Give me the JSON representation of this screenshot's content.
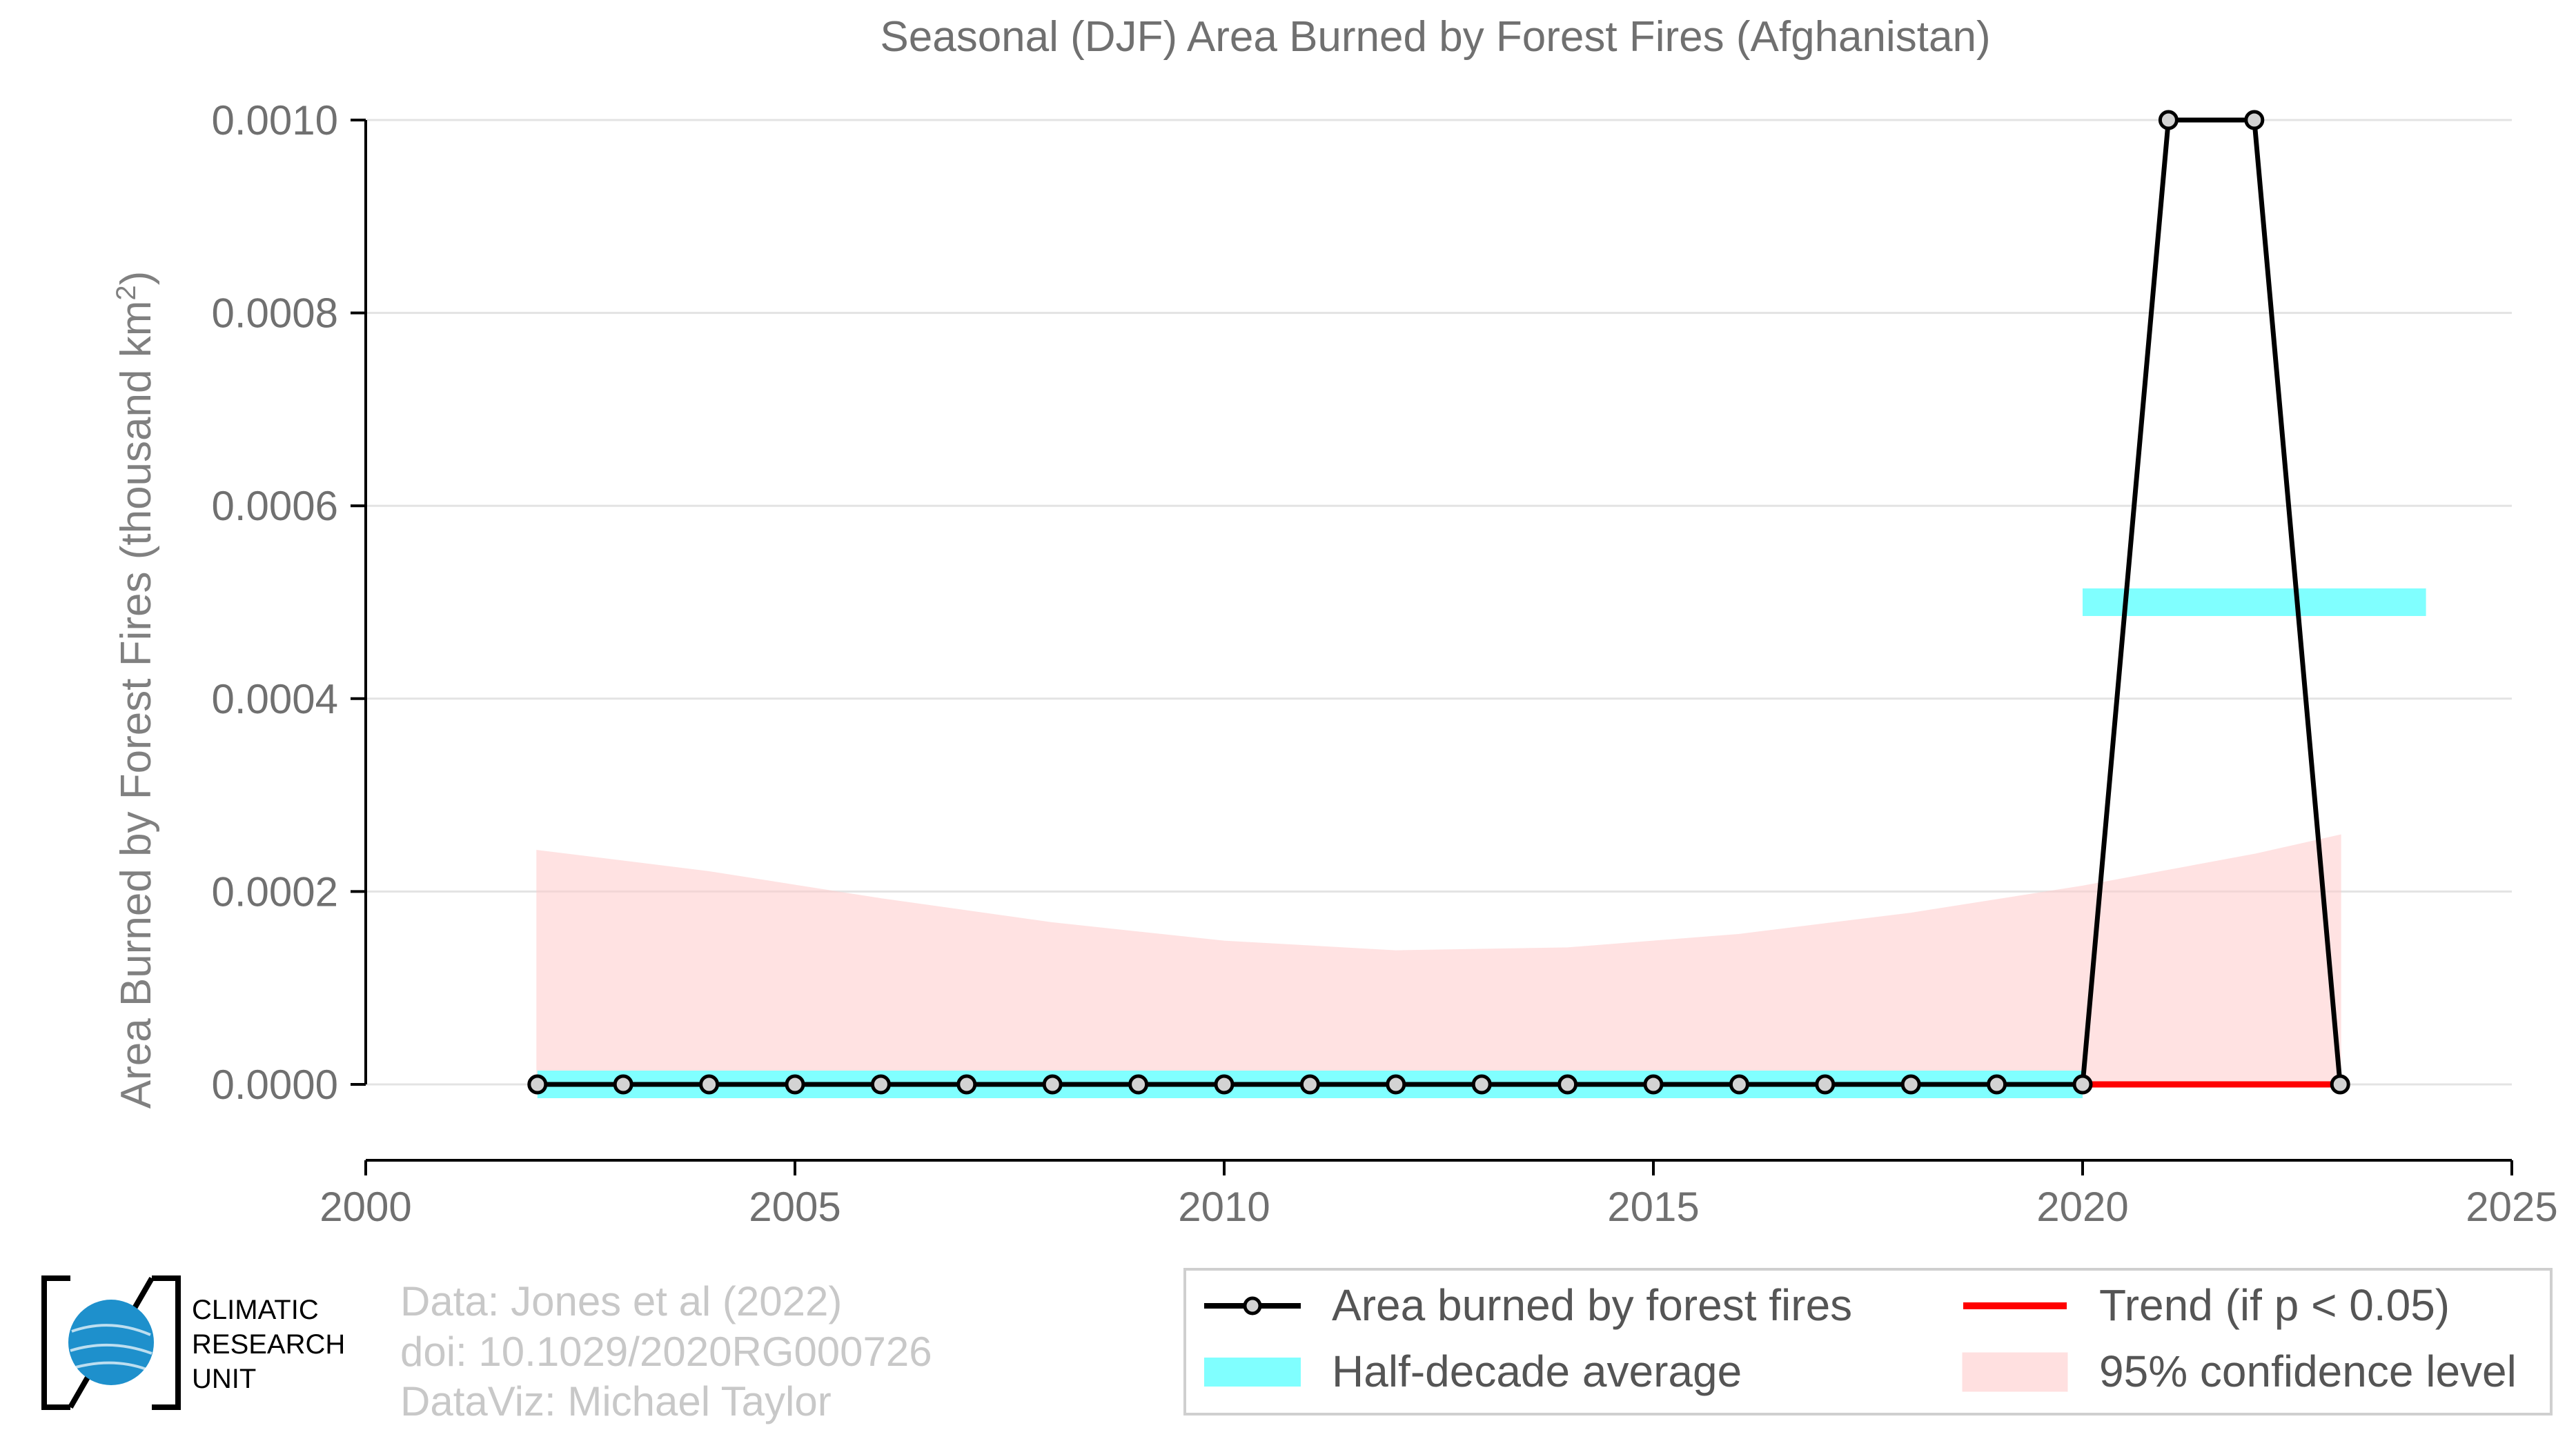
{
  "chart_data": {
    "type": "line",
    "title": "Seasonal (DJF) Area Burned by Forest Fires (Afghanistan)",
    "xlabel": "",
    "ylabel": "Area Burned by Forest Fires (thousand km",
    "ylabel_sup": "2",
    "ylabel_end": ")",
    "xlim": [
      2000,
      2025
    ],
    "ylim": [
      0,
      0.001
    ],
    "x_ticks": [
      "2000",
      "2005",
      "2010",
      "2015",
      "2020",
      "2025"
    ],
    "y_ticks": [
      "0.0000",
      "0.0002",
      "0.0004",
      "0.0006",
      "0.0008",
      "0.0010"
    ],
    "grid": "horizontal",
    "series": [
      {
        "name": "Area burned by forest fires",
        "color": "#000000",
        "x": [
          2002,
          2003,
          2004,
          2005,
          2006,
          2007,
          2008,
          2009,
          2010,
          2011,
          2012,
          2013,
          2014,
          2015,
          2016,
          2017,
          2018,
          2019,
          2020,
          2021,
          2022,
          2023
        ],
        "y": [
          0,
          0,
          0,
          0,
          0,
          0,
          0,
          0,
          0,
          0,
          0,
          0,
          0,
          0,
          0,
          0,
          0,
          0,
          0,
          0.001,
          0.001,
          0
        ]
      },
      {
        "name": "Half-decade average",
        "color": "#80ffff",
        "segments": [
          {
            "x0": 2002,
            "x1": 2020,
            "y": 0
          },
          {
            "x0": 2020,
            "x1": 2024,
            "y": 0.0005
          }
        ]
      },
      {
        "name": "Trend (if p < 0.05)",
        "color": "#ff0000",
        "x": [
          2020,
          2023
        ],
        "y": [
          0,
          0
        ]
      },
      {
        "name": "95% confidence level",
        "color": "#ffcccc",
        "x": [
          2002,
          2004,
          2006,
          2008,
          2010,
          2012,
          2014,
          2016,
          2018,
          2020,
          2022,
          2023
        ],
        "lower": [
          0,
          0,
          0,
          0,
          0,
          0,
          0,
          0,
          0,
          0,
          0,
          0
        ],
        "upper": [
          0.000242,
          0.00022,
          0.000192,
          0.000167,
          0.000148,
          0.000138,
          0.000141,
          0.000155,
          0.000177,
          0.000205,
          0.000238,
          0.000258
        ]
      }
    ],
    "legend_position": "bottom-right"
  },
  "credits": {
    "line1": "Data: Jones et al (2022)",
    "line2": "doi: 10.1029/2020RG000726",
    "line3": "DataViz: Michael Taylor"
  },
  "logo": {
    "line1": "CLIMATIC",
    "line2": "RESEARCH",
    "line3": "UNIT"
  }
}
